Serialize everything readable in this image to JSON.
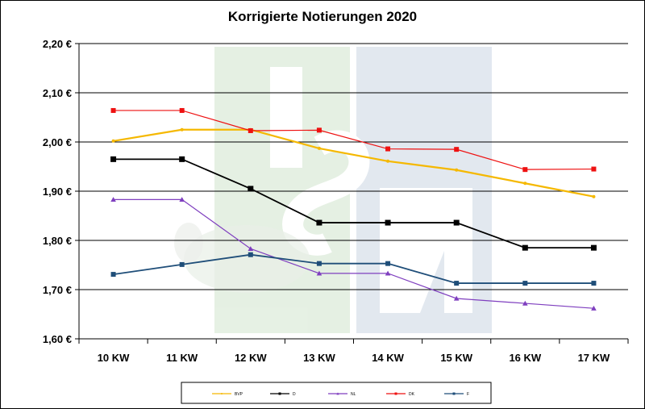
{
  "chart_data": {
    "type": "line",
    "title": "Korrigierte Notierungen 2020",
    "categories": [
      "10 KW",
      "11 KW",
      "12 KW",
      "13 KW",
      "14 KW",
      "15 KW",
      "16 KW",
      "17 KW"
    ],
    "y_ticks": [
      "1,60 €",
      "1,70 €",
      "1,80 €",
      "1,90 €",
      "2,00 €",
      "2,10 €",
      "2,20 €"
    ],
    "ylim": [
      1.6,
      2.2
    ],
    "grid": true,
    "legend_position": "bottom",
    "series": [
      {
        "name": "BVP",
        "color": "#f5b800",
        "marker": "dot",
        "values": [
          2.002,
          2.025,
          2.025,
          1.987,
          1.961,
          1.943,
          1.916,
          1.889
        ]
      },
      {
        "name": "D",
        "color": "#000000",
        "marker": "square",
        "values": [
          1.965,
          1.965,
          1.905,
          1.836,
          1.836,
          1.836,
          1.785,
          1.785
        ]
      },
      {
        "name": "NL",
        "color": "#7f3fbf",
        "marker": "triangle",
        "values": [
          1.883,
          1.883,
          1.783,
          1.733,
          1.733,
          1.682,
          1.672,
          1.662
        ]
      },
      {
        "name": "DK",
        "color": "#ee1111",
        "marker": "square",
        "values": [
          2.064,
          2.064,
          2.023,
          2.024,
          1.986,
          1.985,
          1.944,
          1.945
        ]
      },
      {
        "name": "F",
        "color": "#1f4e79",
        "marker": "square",
        "values": [
          1.731,
          1.751,
          1.771,
          1.753,
          1.753,
          1.713,
          1.713,
          1.713
        ]
      }
    ]
  }
}
